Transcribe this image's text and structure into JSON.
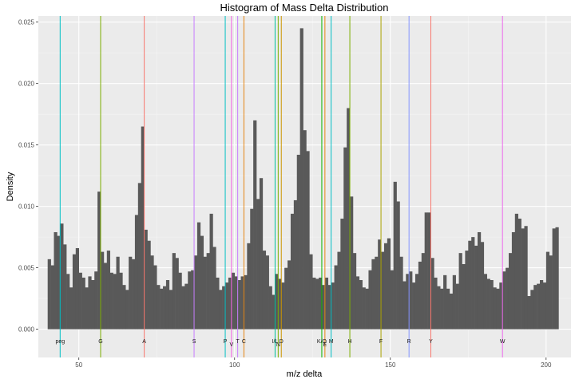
{
  "chart_data": {
    "type": "histogram",
    "title": "Histogram of Mass Delta Distribution",
    "xlabel": "m/z delta",
    "ylabel": "Density",
    "xlim": [
      37,
      208
    ],
    "ylim": [
      -0.0023,
      0.0255
    ],
    "x_ticks": [
      50,
      100,
      150,
      200
    ],
    "x_tick_labels": [
      "50",
      "100",
      "150",
      "200"
    ],
    "y_ticks": [
      0,
      0.005,
      0.01,
      0.015,
      0.02,
      0.025
    ],
    "y_tick_labels": [
      "0.000",
      "0.005",
      "0.010",
      "0.015",
      "0.020",
      "0.025"
    ],
    "bar_color": "#595959",
    "panel_color": "#ebebeb",
    "grid": true,
    "bins": {
      "start": 40,
      "width": 1,
      "values": [
        0.0057,
        0.0052,
        0.0079,
        0.0076,
        0.0086,
        0.0069,
        0.0045,
        0.0034,
        0.0061,
        0.0066,
        0.0046,
        0.0042,
        0.0034,
        0.0043,
        0.004,
        0.0047,
        0.0112,
        0.0063,
        0.0054,
        0.0064,
        0.0046,
        0.0045,
        0.0059,
        0.0046,
        0.0036,
        0.0032,
        0.0059,
        0.0057,
        0.0093,
        0.0119,
        0.0165,
        0.0081,
        0.0072,
        0.006,
        0.0052,
        0.0036,
        0.0033,
        0.0035,
        0.004,
        0.0032,
        0.0062,
        0.0058,
        0.0046,
        0.0035,
        0.0037,
        0.0047,
        0.0048,
        0.006,
        0.0087,
        0.0076,
        0.0059,
        0.0062,
        0.0094,
        0.0067,
        0.0042,
        0.0032,
        0.0035,
        0.0038,
        0.0042,
        0.0046,
        0.0043,
        0.004,
        0.0043,
        0.0044,
        0.007,
        0.0098,
        0.017,
        0.0106,
        0.0123,
        0.0064,
        0.006,
        0.0035,
        0.0028,
        0.0045,
        0.0041,
        0.0038,
        0.005,
        0.0056,
        0.0094,
        0.0105,
        0.0142,
        0.0245,
        0.0162,
        0.0145,
        0.0061,
        0.0042,
        0.0041,
        0.0042,
        0.0036,
        0.0042,
        0.0036,
        0.0038,
        0.0052,
        0.0063,
        0.009,
        0.0148,
        0.018,
        0.0108,
        0.0062,
        0.0043,
        0.004,
        0.0034,
        0.0033,
        0.0048,
        0.0057,
        0.0059,
        0.0073,
        0.0063,
        0.007,
        0.0074,
        0.0048,
        0.012,
        0.0104,
        0.0059,
        0.0039,
        0.0045,
        0.0047,
        0.0038,
        0.0045,
        0.0055,
        0.0062,
        0.0095,
        0.0095,
        0.0058,
        0.0042,
        0.0035,
        0.0033,
        0.0044,
        0.0033,
        0.0029,
        0.0044,
        0.0037,
        0.0062,
        0.0053,
        0.0064,
        0.0072,
        0.0075,
        0.0068,
        0.0079,
        0.0071,
        0.0045,
        0.0041,
        0.004,
        0.0034,
        0.0033,
        0.0038,
        0.0047,
        0.005,
        0.0062,
        0.0079,
        0.0094,
        0.009,
        0.0082,
        0.0084,
        0.0027,
        0.0032,
        0.0036,
        0.0037,
        0.004,
        0.0038,
        0.0063,
        0.006,
        0.0082,
        0.0083
      ]
    },
    "reference_lines": [
      {
        "label": "peg",
        "x": 44,
        "color": "#00bfc4"
      },
      {
        "label": "G",
        "x": 57,
        "color": "#7cae00"
      },
      {
        "label": "A",
        "x": 71,
        "color": "#f8766d"
      },
      {
        "label": "S",
        "x": 87,
        "color": "#c77cff"
      },
      {
        "label": "P",
        "x": 97,
        "color": "#00bfc4"
      },
      {
        "label": "V",
        "x": 99,
        "color": "#f564e3"
      },
      {
        "label": "T",
        "x": 101,
        "color": "#c77cff"
      },
      {
        "label": "C",
        "x": 103,
        "color": "#e68613"
      },
      {
        "label": "I/L",
        "x": 113,
        "color": "#00c19a"
      },
      {
        "label": "N",
        "x": 114,
        "color": "#7cae00"
      },
      {
        "label": "D",
        "x": 115,
        "color": "#cd9600"
      },
      {
        "label": "K/Q",
        "x": 128,
        "color": "#0cb702"
      },
      {
        "label": "E",
        "x": 129,
        "color": "#e68613"
      },
      {
        "label": "M",
        "x": 131,
        "color": "#00bfc4"
      },
      {
        "label": "H",
        "x": 137,
        "color": "#7cae00"
      },
      {
        "label": "F",
        "x": 147,
        "color": "#aba300"
      },
      {
        "label": "R",
        "x": 156,
        "color": "#8494ff"
      },
      {
        "label": "Y",
        "x": 163,
        "color": "#f8766d"
      },
      {
        "label": "W",
        "x": 186,
        "color": "#ed68ed"
      }
    ]
  }
}
